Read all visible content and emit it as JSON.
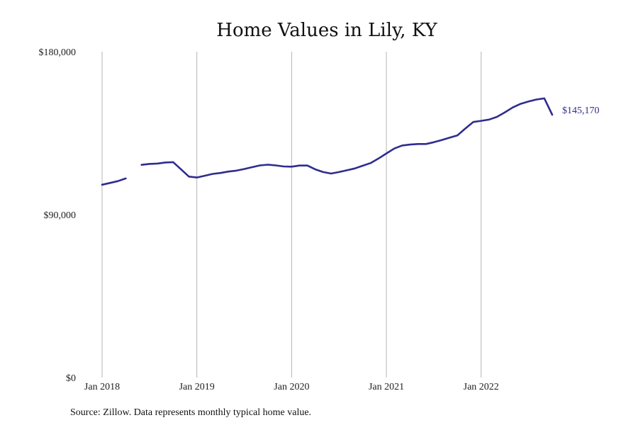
{
  "chart_data": {
    "type": "line",
    "title": "Home Values in Lily, KY",
    "xlabel": "",
    "ylabel": "",
    "ylim": [
      0,
      180000
    ],
    "y_ticks": [
      {
        "value": 0,
        "label": "$0"
      },
      {
        "value": 90000,
        "label": "$90,000"
      },
      {
        "value": 180000,
        "label": "$180,000"
      }
    ],
    "x_ticks": [
      {
        "date": "2018-01",
        "label": "Jan 2018"
      },
      {
        "date": "2019-01",
        "label": "Jan 2019"
      },
      {
        "date": "2020-01",
        "label": "Jan 2020"
      },
      {
        "date": "2021-01",
        "label": "Jan 2021"
      },
      {
        "date": "2022-01",
        "label": "Jan 2022"
      }
    ],
    "xlim": [
      "2018-01",
      "2022-12"
    ],
    "grid": "vertical",
    "color": "#2e2d8f",
    "series": [
      {
        "segments": [
          {
            "x": [
              "2018-01",
              "2018-02",
              "2018-03",
              "2018-04"
            ],
            "y": [
              106500,
              107500,
              108500,
              110000
            ]
          },
          {
            "x": [
              "2018-06",
              "2018-07",
              "2018-08",
              "2018-09",
              "2018-10",
              "2018-11",
              "2018-12",
              "2019-01",
              "2019-02",
              "2019-03",
              "2019-04",
              "2019-05",
              "2019-06",
              "2019-07",
              "2019-08",
              "2019-09",
              "2019-10",
              "2019-11",
              "2019-12",
              "2020-01",
              "2020-02",
              "2020-03",
              "2020-04",
              "2020-05",
              "2020-06",
              "2020-07",
              "2020-08",
              "2020-09",
              "2020-10",
              "2020-11",
              "2020-12",
              "2021-01",
              "2021-02",
              "2021-03",
              "2021-04",
              "2021-05",
              "2021-06",
              "2021-07",
              "2021-08",
              "2021-09",
              "2021-10",
              "2021-11",
              "2021-12",
              "2022-01",
              "2022-02",
              "2022-03",
              "2022-04",
              "2022-05",
              "2022-06",
              "2022-07",
              "2022-08",
              "2022-09",
              "2022-10"
            ],
            "y": [
              117500,
              118000,
              118200,
              118800,
              119000,
              115000,
              111000,
              110500,
              111500,
              112500,
              113000,
              113800,
              114300,
              115200,
              116200,
              117200,
              117600,
              117200,
              116600,
              116500,
              117100,
              117100,
              115000,
              113500,
              112700,
              113500,
              114500,
              115500,
              117000,
              118500,
              121000,
              123800,
              126500,
              128200,
              128700,
              129000,
              129000,
              130000,
              131200,
              132500,
              133800,
              137600,
              141200,
              141800,
              142500,
              144000,
              146500,
              149200,
              151200,
              152500,
              153600,
              154200,
              145170
            ]
          }
        ],
        "end_label": "$145,170"
      }
    ]
  },
  "source_note": "Source: Zillow. Data represents monthly typical home value."
}
